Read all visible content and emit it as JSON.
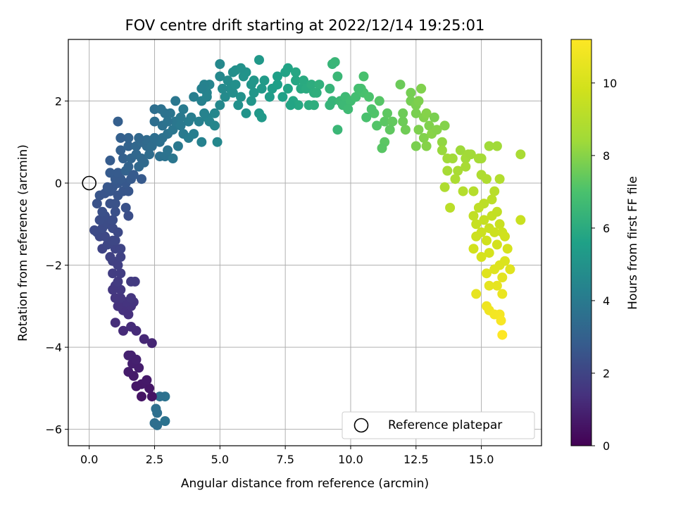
{
  "chart_data": {
    "type": "scatter",
    "title": "FOV centre drift starting at 2022/12/14 19:25:01",
    "xlabel": "Angular distance from reference (arcmin)",
    "ylabel": "Rotation from reference (arcmin)",
    "xlim": [
      -0.8,
      17.3
    ],
    "ylim": [
      -6.4,
      3.5
    ],
    "xticks": [
      0.0,
      2.5,
      5.0,
      7.5,
      10.0,
      12.5,
      15.0
    ],
    "xtick_labels": [
      "0.0",
      "2.5",
      "5.0",
      "7.5",
      "10.0",
      "12.5",
      "15.0"
    ],
    "yticks": [
      -6,
      -4,
      -2,
      0,
      2
    ],
    "ytick_labels": [
      "−6",
      "−4",
      "−2",
      "0",
      "2"
    ],
    "grid": true,
    "colormap": "viridis",
    "colorbar": {
      "label": "Hours from first FF file",
      "range": [
        0,
        11.2
      ],
      "ticks": [
        0,
        2,
        4,
        6,
        8,
        10
      ],
      "tick_labels": [
        "0",
        "2",
        "4",
        "6",
        "8",
        "10"
      ]
    },
    "legend": {
      "position": "lower-right",
      "entries": [
        "Reference platepar"
      ]
    },
    "reference_point": {
      "x": 0.0,
      "y": 0.0
    },
    "series": [
      {
        "name": "",
        "columns": [
          "x",
          "y",
          "hours"
        ],
        "points": [
          [
            2.6,
            -5.9
          ],
          [
            2.9,
            -5.8
          ],
          [
            2.5,
            -5.85
          ],
          [
            2.6,
            -5.6
          ],
          [
            2.55,
            -5.5
          ],
          [
            2.9,
            -5.2
          ],
          [
            2.7,
            -5.2
          ],
          [
            2.4,
            -5.2
          ],
          [
            2.0,
            -5.2
          ],
          [
            2.3,
            -5.0
          ],
          [
            2.0,
            -4.9
          ],
          [
            1.8,
            -4.95
          ],
          [
            1.7,
            -4.7
          ],
          [
            1.5,
            -4.6
          ],
          [
            1.65,
            -4.4
          ],
          [
            2.2,
            -4.8
          ],
          [
            1.9,
            -4.5
          ],
          [
            1.6,
            -4.2
          ],
          [
            1.5,
            -4.2
          ],
          [
            1.8,
            -4.3
          ],
          [
            2.4,
            -3.9
          ],
          [
            2.1,
            -3.8
          ],
          [
            1.8,
            -3.6
          ],
          [
            1.6,
            -3.5
          ],
          [
            1.3,
            -3.6
          ],
          [
            1.0,
            -3.4
          ],
          [
            1.3,
            -3.1
          ],
          [
            1.5,
            -3.2
          ],
          [
            1.6,
            -3.0
          ],
          [
            1.4,
            -2.9
          ],
          [
            1.1,
            -3.0
          ],
          [
            1.2,
            -2.8
          ],
          [
            1.0,
            -2.8
          ],
          [
            1.7,
            -2.9
          ],
          [
            1.6,
            -2.8
          ],
          [
            1.2,
            -2.6
          ],
          [
            1.0,
            -2.5
          ],
          [
            0.9,
            -2.6
          ],
          [
            1.75,
            -2.4
          ],
          [
            1.6,
            -2.4
          ],
          [
            1.1,
            -2.4
          ],
          [
            0.9,
            -2.2
          ],
          [
            1.2,
            -2.2
          ],
          [
            0.9,
            -1.9
          ],
          [
            1.1,
            -2.0
          ],
          [
            1.2,
            -1.8
          ],
          [
            0.8,
            -1.8
          ],
          [
            1.0,
            -1.6
          ],
          [
            1.2,
            -1.6
          ],
          [
            0.5,
            -1.6
          ],
          [
            0.7,
            -1.5
          ],
          [
            0.9,
            -1.4
          ],
          [
            1.0,
            -1.4
          ],
          [
            0.4,
            -1.3
          ],
          [
            0.6,
            -1.3
          ],
          [
            0.3,
            -1.2
          ],
          [
            0.2,
            -1.15
          ],
          [
            0.5,
            -1.1
          ],
          [
            0.7,
            -1.0
          ],
          [
            0.9,
            -1.1
          ],
          [
            1.1,
            -1.2
          ],
          [
            0.4,
            -0.9
          ],
          [
            0.6,
            -0.8
          ],
          [
            0.9,
            -0.9
          ],
          [
            1.0,
            -0.7
          ],
          [
            0.5,
            -0.7
          ],
          [
            0.3,
            -0.5
          ],
          [
            0.8,
            -0.5
          ],
          [
            1.0,
            -0.5
          ],
          [
            1.5,
            -0.8
          ],
          [
            1.4,
            -0.6
          ],
          [
            0.4,
            -0.3
          ],
          [
            0.6,
            -0.25
          ],
          [
            0.8,
            -0.2
          ],
          [
            1.1,
            -0.3
          ],
          [
            1.3,
            -0.2
          ],
          [
            0.9,
            -0.1
          ],
          [
            0.7,
            -0.1
          ],
          [
            1.1,
            0.0
          ],
          [
            1.0,
            0.1
          ],
          [
            1.5,
            -0.2
          ],
          [
            1.4,
            0.0
          ],
          [
            1.2,
            0.1
          ],
          [
            0.8,
            0.25
          ],
          [
            1.1,
            0.25
          ],
          [
            1.4,
            0.3
          ],
          [
            1.6,
            0.1
          ],
          [
            2.0,
            0.1
          ],
          [
            1.7,
            0.2
          ],
          [
            1.5,
            0.4
          ],
          [
            1.9,
            0.4
          ],
          [
            2.1,
            0.5
          ],
          [
            1.3,
            0.6
          ],
          [
            1.6,
            0.6
          ],
          [
            1.8,
            0.7
          ],
          [
            2.0,
            0.6
          ],
          [
            0.8,
            0.55
          ],
          [
            1.2,
            0.8
          ],
          [
            1.5,
            0.9
          ],
          [
            2.2,
            0.9
          ],
          [
            1.8,
            0.9
          ],
          [
            2.0,
            1.0
          ],
          [
            2.2,
            1.05
          ],
          [
            1.9,
            1.1
          ],
          [
            2.7,
            1.0
          ],
          [
            2.4,
            0.9
          ],
          [
            2.3,
            0.7
          ],
          [
            2.7,
            0.65
          ],
          [
            2.9,
            0.65
          ],
          [
            3.2,
            0.6
          ],
          [
            3.0,
            0.8
          ],
          [
            3.4,
            0.9
          ],
          [
            2.8,
            1.1
          ],
          [
            3.0,
            1.2
          ],
          [
            3.2,
            1.3
          ],
          [
            3.6,
            1.2
          ],
          [
            3.8,
            1.1
          ],
          [
            4.0,
            1.2
          ],
          [
            4.3,
            1.0
          ],
          [
            3.3,
            1.5
          ],
          [
            3.1,
            1.7
          ],
          [
            2.5,
            1.8
          ],
          [
            2.75,
            1.8
          ],
          [
            2.9,
            1.7
          ],
          [
            3.5,
            1.6
          ],
          [
            3.8,
            1.5
          ],
          [
            3.6,
            1.8
          ],
          [
            3.3,
            2.0
          ],
          [
            2.5,
            1.5
          ],
          [
            1.5,
            1.1
          ],
          [
            1.2,
            1.1
          ],
          [
            1.1,
            1.5
          ],
          [
            2.5,
            1.1
          ],
          [
            2.8,
            1.4
          ],
          [
            3.5,
            1.4
          ],
          [
            3.9,
            1.6
          ],
          [
            3.0,
            1.5
          ],
          [
            4.2,
            1.5
          ],
          [
            4.5,
            1.6
          ],
          [
            4.6,
            1.5
          ],
          [
            4.8,
            1.4
          ],
          [
            4.9,
            1.0
          ],
          [
            4.4,
            1.7
          ],
          [
            4.0,
            2.1
          ],
          [
            4.3,
            2.0
          ],
          [
            4.5,
            2.2
          ],
          [
            4.6,
            2.4
          ],
          [
            4.8,
            1.7
          ],
          [
            5.0,
            1.9
          ],
          [
            5.2,
            2.1
          ],
          [
            5.5,
            2.2
          ],
          [
            5.7,
            1.9
          ],
          [
            5.8,
            2.1
          ],
          [
            6.0,
            1.7
          ],
          [
            6.2,
            2.0
          ],
          [
            6.3,
            2.2
          ],
          [
            6.5,
            1.7
          ],
          [
            6.6,
            1.6
          ],
          [
            5.4,
            2.3
          ],
          [
            5.3,
            2.5
          ],
          [
            5.6,
            2.4
          ],
          [
            5.9,
            2.6
          ],
          [
            5.0,
            2.6
          ],
          [
            4.4,
            2.4
          ],
          [
            4.3,
            2.3
          ],
          [
            4.5,
            2.1
          ],
          [
            5.1,
            2.3
          ],
          [
            5.5,
            2.7
          ],
          [
            5.0,
            2.9
          ],
          [
            5.6,
            2.75
          ],
          [
            6.0,
            2.7
          ],
          [
            5.8,
            2.8
          ],
          [
            6.3,
            2.5
          ],
          [
            6.2,
            2.4
          ],
          [
            6.6,
            2.3
          ],
          [
            6.9,
            2.1
          ],
          [
            7.0,
            2.3
          ],
          [
            6.5,
            3.0
          ],
          [
            6.7,
            2.5
          ],
          [
            7.2,
            2.4
          ],
          [
            7.4,
            2.1
          ],
          [
            7.6,
            2.3
          ],
          [
            7.8,
            2.0
          ],
          [
            7.5,
            2.7
          ],
          [
            7.6,
            2.8
          ],
          [
            7.2,
            2.6
          ],
          [
            7.9,
            2.5
          ],
          [
            8.1,
            2.3
          ],
          [
            7.9,
            2.7
          ],
          [
            8.2,
            2.5
          ],
          [
            8.3,
            2.3
          ],
          [
            8.5,
            2.4
          ],
          [
            8.0,
            1.9
          ],
          [
            7.7,
            1.9
          ],
          [
            8.6,
            2.2
          ],
          [
            8.4,
            1.9
          ],
          [
            8.6,
            1.9
          ],
          [
            8.8,
            2.4
          ],
          [
            8.7,
            2.2
          ],
          [
            9.3,
            2.9
          ],
          [
            9.4,
            2.95
          ],
          [
            9.5,
            2.6
          ],
          [
            9.2,
            2.3
          ],
          [
            9.3,
            2.0
          ],
          [
            9.2,
            1.9
          ],
          [
            9.6,
            2.0
          ],
          [
            9.7,
            1.9
          ],
          [
            9.8,
            2.1
          ],
          [
            10.0,
            2.0
          ],
          [
            10.2,
            2.1
          ],
          [
            9.9,
            1.8
          ],
          [
            9.5,
            1.3
          ],
          [
            10.4,
            2.3
          ],
          [
            10.5,
            2.2
          ],
          [
            10.3,
            2.3
          ],
          [
            10.7,
            2.1
          ],
          [
            11.1,
            2.0
          ],
          [
            10.9,
            1.7
          ],
          [
            10.8,
            1.8
          ],
          [
            10.6,
            1.6
          ],
          [
            10.5,
            2.6
          ],
          [
            11.0,
            1.4
          ],
          [
            11.3,
            1.5
          ],
          [
            11.4,
            1.7
          ],
          [
            11.6,
            1.5
          ],
          [
            11.5,
            1.3
          ],
          [
            11.3,
            1.0
          ],
          [
            11.2,
            0.85
          ],
          [
            12.0,
            1.7
          ],
          [
            12.1,
            1.3
          ],
          [
            12.0,
            1.5
          ],
          [
            12.3,
            2.0
          ],
          [
            12.5,
            1.9
          ],
          [
            11.9,
            2.4
          ],
          [
            12.3,
            2.2
          ],
          [
            12.6,
            2.0
          ],
          [
            12.5,
            1.7
          ],
          [
            12.8,
            1.6
          ],
          [
            12.7,
            2.3
          ],
          [
            12.9,
            1.7
          ],
          [
            13.2,
            1.6
          ],
          [
            13.0,
            1.4
          ],
          [
            12.6,
            1.3
          ],
          [
            12.8,
            1.1
          ],
          [
            12.9,
            0.9
          ],
          [
            13.1,
            1.2
          ],
          [
            12.5,
            0.9
          ],
          [
            13.3,
            1.3
          ],
          [
            13.5,
            1.0
          ],
          [
            13.6,
            1.4
          ],
          [
            13.5,
            0.8
          ],
          [
            13.7,
            0.6
          ],
          [
            13.7,
            0.3
          ],
          [
            13.6,
            -0.1
          ],
          [
            13.9,
            0.6
          ],
          [
            14.2,
            0.8
          ],
          [
            14.5,
            0.7
          ],
          [
            14.1,
            0.3
          ],
          [
            14.4,
            0.6
          ],
          [
            13.8,
            -0.6
          ],
          [
            14.0,
            0.1
          ],
          [
            14.6,
            0.7
          ],
          [
            14.9,
            0.6
          ],
          [
            15.0,
            0.2
          ],
          [
            14.7,
            -0.2
          ],
          [
            15.3,
            0.9
          ],
          [
            15.2,
            0.1
          ],
          [
            15.5,
            -0.2
          ],
          [
            15.4,
            -0.4
          ],
          [
            15.1,
            -0.5
          ],
          [
            14.9,
            -0.6
          ],
          [
            14.7,
            -0.8
          ],
          [
            14.8,
            -1.0
          ],
          [
            15.1,
            -0.9
          ],
          [
            15.4,
            -0.8
          ],
          [
            15.6,
            -0.7
          ],
          [
            15.3,
            -1.1
          ],
          [
            15.0,
            -1.2
          ],
          [
            14.8,
            -1.3
          ],
          [
            15.2,
            -1.4
          ],
          [
            14.7,
            -1.6
          ],
          [
            15.3,
            -1.7
          ],
          [
            15.0,
            -1.8
          ],
          [
            15.6,
            -1.5
          ],
          [
            15.5,
            -1.2
          ],
          [
            15.7,
            -1.0
          ],
          [
            15.8,
            -1.2
          ],
          [
            15.9,
            -1.3
          ],
          [
            16.0,
            -1.6
          ],
          [
            15.7,
            -2.0
          ],
          [
            15.5,
            -2.1
          ],
          [
            16.1,
            -2.1
          ],
          [
            15.9,
            -1.9
          ],
          [
            15.8,
            -2.3
          ],
          [
            15.2,
            -2.2
          ],
          [
            15.3,
            -2.5
          ],
          [
            15.6,
            -2.5
          ],
          [
            15.8,
            -2.7
          ],
          [
            14.8,
            -2.7
          ],
          [
            15.2,
            -3.0
          ],
          [
            15.3,
            -3.1
          ],
          [
            15.5,
            -3.2
          ],
          [
            15.7,
            -3.2
          ],
          [
            15.75,
            -3.35
          ],
          [
            15.8,
            -3.7
          ],
          [
            16.5,
            -0.9
          ],
          [
            16.5,
            0.7
          ],
          [
            15.7,
            0.1
          ],
          [
            15.6,
            0.9
          ],
          [
            15.0,
            0.6
          ],
          [
            14.3,
            -0.2
          ],
          [
            14.4,
            0.4
          ]
        ]
      }
    ]
  }
}
